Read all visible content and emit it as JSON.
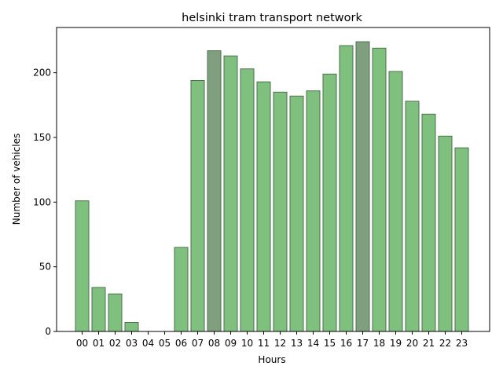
{
  "chart_data": {
    "type": "bar",
    "title": "helsinki tram transport network",
    "xlabel": "Hours",
    "ylabel": "Number of vehicles",
    "categories": [
      "00",
      "01",
      "02",
      "03",
      "04",
      "05",
      "06",
      "07",
      "08",
      "09",
      "10",
      "11",
      "12",
      "13",
      "14",
      "15",
      "16",
      "17",
      "18",
      "19",
      "20",
      "21",
      "22",
      "23"
    ],
    "values": [
      101,
      34,
      29,
      7,
      0,
      0,
      65,
      194,
      217,
      213,
      203,
      193,
      185,
      182,
      186,
      199,
      221,
      224,
      219,
      201,
      178,
      168,
      151,
      142
    ],
    "highlighted": [
      "08",
      "17"
    ],
    "ylim": [
      0,
      235
    ],
    "yticks": [
      0,
      50,
      100,
      150,
      200
    ],
    "grid": false,
    "colors": {
      "bar": "#7fc07f",
      "bar_highlight": "#7f9f7f",
      "bar_edge": "#4f6f4f",
      "axis": "#000000"
    }
  }
}
